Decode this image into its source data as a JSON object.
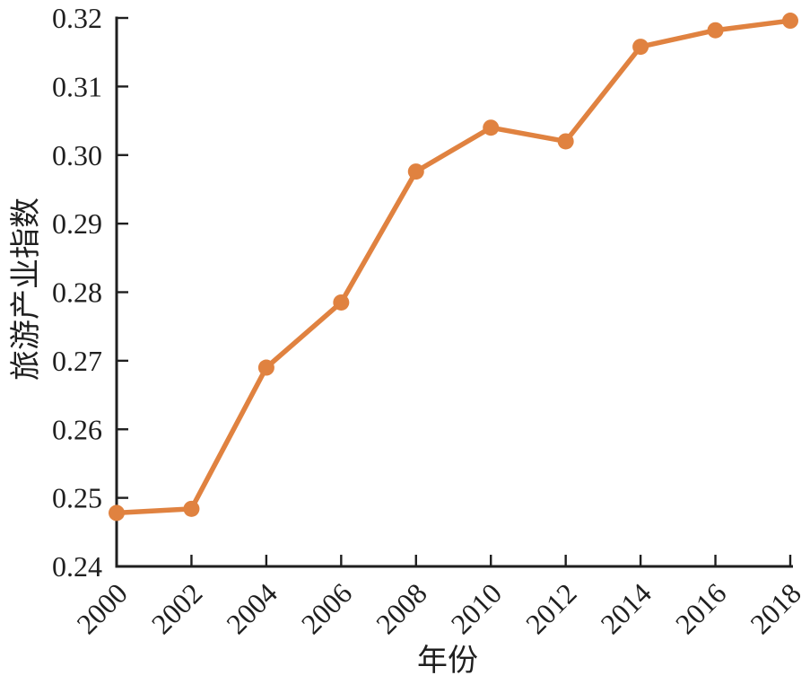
{
  "chart_data": {
    "type": "line",
    "x": [
      2000,
      2002,
      2004,
      2006,
      2008,
      2010,
      2012,
      2014,
      2016,
      2018
    ],
    "values": [
      0.2478,
      0.2484,
      0.269,
      0.2785,
      0.2976,
      0.304,
      0.302,
      0.3158,
      0.3182,
      0.3196
    ],
    "xlabel": "年份",
    "ylabel": "旅游产业指数",
    "xlim": [
      2000,
      2018
    ],
    "ylim": [
      0.24,
      0.32
    ],
    "xticks": [
      2000,
      2002,
      2004,
      2006,
      2008,
      2010,
      2012,
      2014,
      2016,
      2018
    ],
    "yticks": [
      0.24,
      0.25,
      0.26,
      0.27,
      0.28,
      0.29,
      0.3,
      0.31,
      0.32
    ],
    "ytick_decimals": 2,
    "xtick_rotation_deg": 45,
    "grid": false,
    "legend": "none",
    "marker": "circle",
    "line_color": "#E08240",
    "axis_color": "#1f1f1f"
  }
}
